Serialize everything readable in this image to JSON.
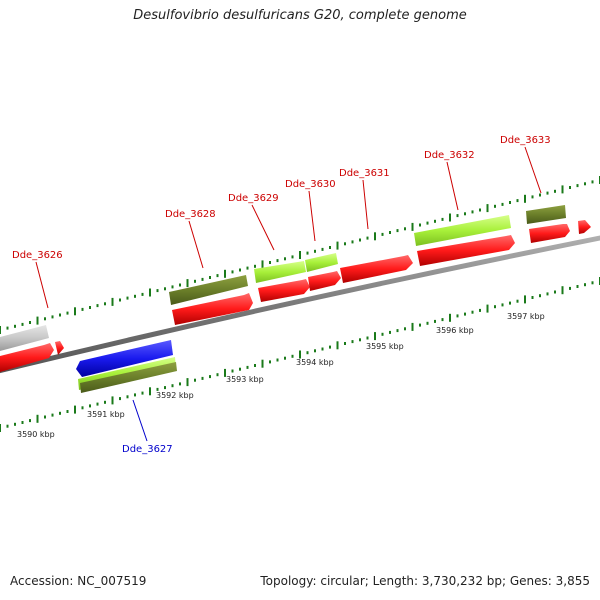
{
  "title": "Desulfovibrio desulfuricans G20, complete genome",
  "footer": {
    "accession": "Accession: NC_007519",
    "summary": "Topology: circular; Length: 3,730,232 bp; Genes: 3,855"
  },
  "colors": {
    "backbone": "#7a7a7a",
    "gene_red": "#ff1a1a",
    "gene_blue": "#1a1aee",
    "feature_olive": "#6b7f2a",
    "feature_lime": "#a8f03a",
    "feature_grey": "#c8c8c8",
    "label_red": "#cc0000",
    "label_blue": "#0000cc",
    "tick_green": "#1a7a1a"
  },
  "scale": {
    "ticks": [
      "3590 kbp",
      "3591 kbp",
      "3592 kbp",
      "3593 kbp",
      "3594 kbp",
      "3595 kbp",
      "3596 kbp",
      "3597 kbp"
    ]
  },
  "genes": [
    {
      "id": "Dde_3626",
      "strand": "+"
    },
    {
      "id": "Dde_3627",
      "strand": "-"
    },
    {
      "id": "Dde_3628",
      "strand": "+"
    },
    {
      "id": "Dde_3629",
      "strand": "+"
    },
    {
      "id": "Dde_3630",
      "strand": "+"
    },
    {
      "id": "Dde_3631",
      "strand": "+"
    },
    {
      "id": "Dde_3632",
      "strand": "+"
    },
    {
      "id": "Dde_3633",
      "strand": "+"
    }
  ]
}
